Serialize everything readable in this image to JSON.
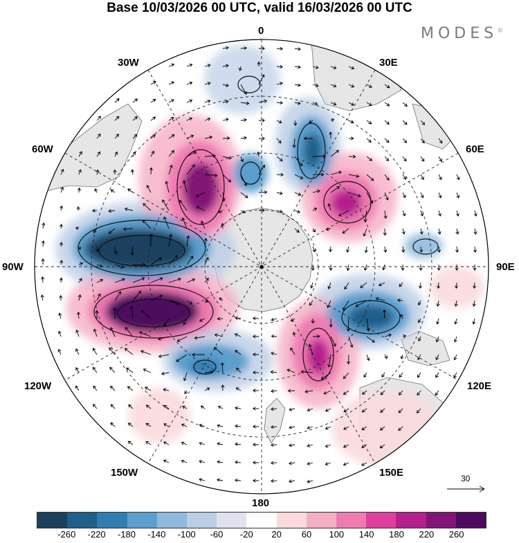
{
  "title": "Base 10/03/2026 00 UTC, valid 16/03/2026 00 UTC",
  "brand": "MODES",
  "brand_mark": "©",
  "longitude_labels": {
    "top": "0",
    "top_left": "30W",
    "top_right": "30E",
    "left_upper": "60W",
    "right_upper": "60E",
    "left": "90W",
    "right": "90E",
    "left_lower": "120W",
    "right_lower": "120E",
    "bottom_left": "150W",
    "bottom_right": "150E",
    "bottom": "180"
  },
  "reference_vector": {
    "label": "30"
  },
  "colorbar": {
    "colors": [
      "#1d3f5e",
      "#1f5f8a",
      "#2f7db2",
      "#5c9fcf",
      "#8fb9dd",
      "#bccde6",
      "#e2e1ef",
      "#ffffff",
      "#fbdadb",
      "#f6aec4",
      "#ef7bb2",
      "#de3f9f",
      "#b51f8d",
      "#821477",
      "#4e0a5f"
    ],
    "tick_labels": [
      "-260",
      "-220",
      "-180",
      "-140",
      "-100",
      "-60",
      "-20",
      "20",
      "60",
      "100",
      "140",
      "180",
      "220",
      "260"
    ]
  },
  "palette": {
    "land": "#e7e7e7",
    "coast": "#6e6e6e",
    "grid": "#222222",
    "blue_dark": "#1d3f5e",
    "pink_dark": "#821477"
  }
}
